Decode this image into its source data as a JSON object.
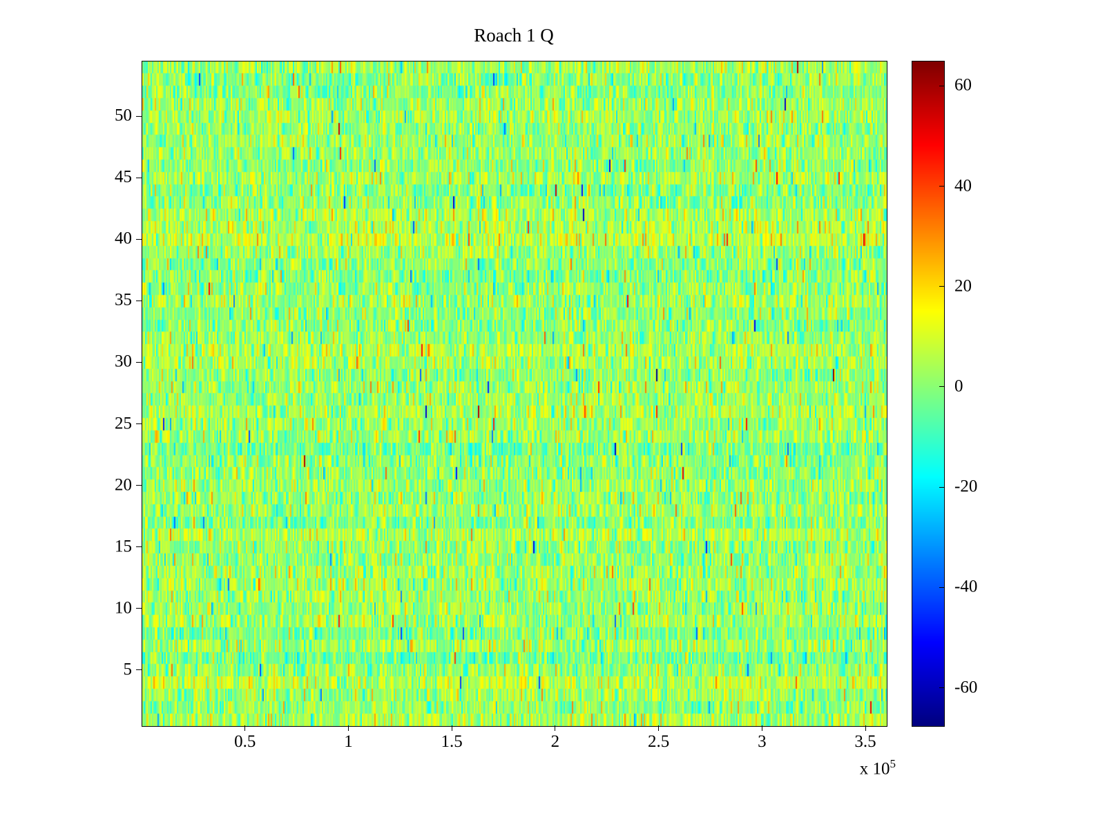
{
  "figure": {
    "background": "#ffffff"
  },
  "chart_data": {
    "type": "heatmap",
    "title": "Roach 1 Q",
    "xlabel": "",
    "ylabel": "",
    "xlabel_multiplier": {
      "prefix": "x 10",
      "exponent": "5"
    },
    "xlim": [
      0,
      360000
    ],
    "ylim": [
      0.5,
      54.5
    ],
    "x_ticks": [
      {
        "value": 50000,
        "label": "0.5"
      },
      {
        "value": 100000,
        "label": "1"
      },
      {
        "value": 150000,
        "label": "1.5"
      },
      {
        "value": 200000,
        "label": "2"
      },
      {
        "value": 250000,
        "label": "2.5"
      },
      {
        "value": 300000,
        "label": "3"
      },
      {
        "value": 350000,
        "label": "3.5"
      }
    ],
    "y_ticks": [
      {
        "value": 5,
        "label": "5"
      },
      {
        "value": 10,
        "label": "10"
      },
      {
        "value": 15,
        "label": "15"
      },
      {
        "value": 20,
        "label": "20"
      },
      {
        "value": 25,
        "label": "25"
      },
      {
        "value": 30,
        "label": "30"
      },
      {
        "value": 35,
        "label": "35"
      },
      {
        "value": 40,
        "label": "40"
      },
      {
        "value": 45,
        "label": "45"
      },
      {
        "value": 50,
        "label": "50"
      }
    ],
    "colorbar": {
      "colormap": "jet",
      "vmin": -67.5,
      "vmax": 65,
      "ticks": [
        {
          "value": 60,
          "label": "60"
        },
        {
          "value": 40,
          "label": "40"
        },
        {
          "value": 20,
          "label": "20"
        },
        {
          "value": 0,
          "label": "0"
        },
        {
          "value": -20,
          "label": "-20"
        },
        {
          "value": -40,
          "label": "-40"
        },
        {
          "value": -60,
          "label": "-60"
        }
      ]
    },
    "noise_model": {
      "description": "54 rows of dense random noise values centered near 0 (yellow-green), with cyan/orange speckle and sparse large positive/negative spikes",
      "seed": 1337,
      "rows": 54,
      "cols": 539,
      "mean": 2,
      "std": 8.5,
      "row_offset_std": 1.6,
      "spike_prob": 0.02,
      "spike_std": 22
    }
  }
}
